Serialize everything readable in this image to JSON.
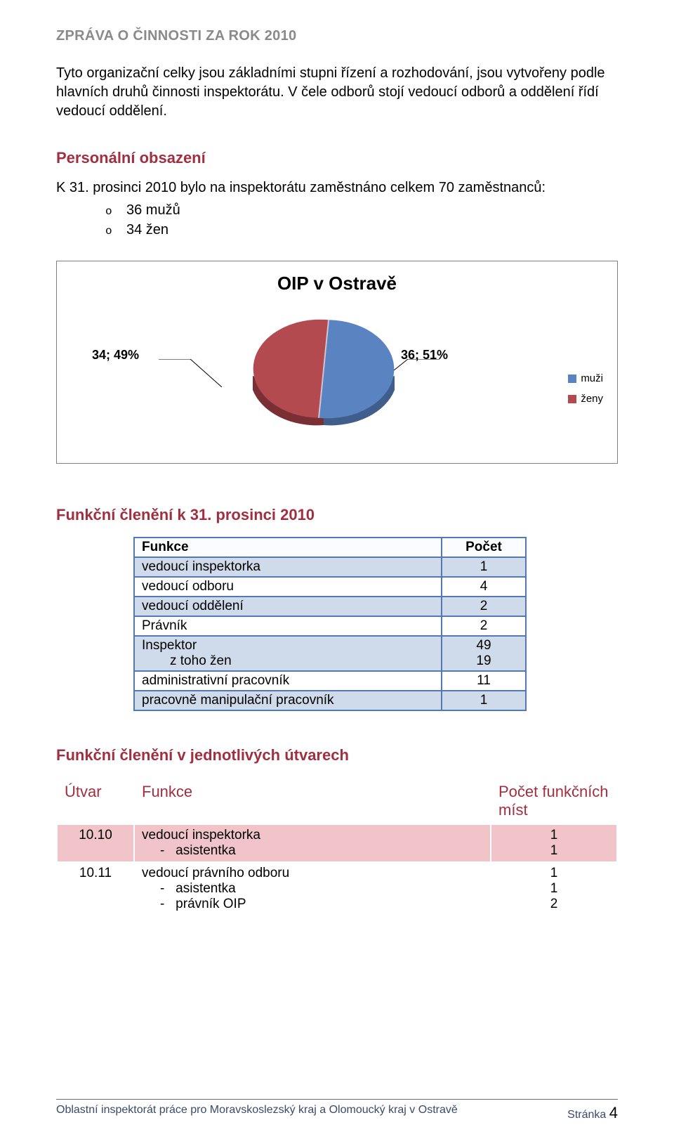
{
  "doc_header": "ZPRÁVA O ČINNOSTI ZA ROK 2010",
  "intro_para": "Tyto organizační celky jsou základními stupni řízení a rozhodování, jsou vytvořeny podle hlavních druhů činnosti inspektorátu. V čele odborů stojí vedoucí odborů a oddělení řídí vedoucí oddělení.",
  "section_personal": "Personální obsazení",
  "personal_intro": "K 31. prosinci 2010 bylo na inspektorátu zaměstnáno celkem 70 zaměstnanců:",
  "bullets": {
    "men": "36 mužů",
    "women": "34 žen"
  },
  "chart": {
    "title": "OIP v Ostravě",
    "left_label": "34; 49%",
    "right_label": "36; 51%",
    "legend": {
      "men": "muži",
      "women": "ženy"
    },
    "colors": {
      "men": "#5a83c2",
      "women": "#b24a50",
      "men_shadow": "#3f5e8c",
      "women_shadow": "#7a2f34",
      "callout_line": "#000000"
    },
    "slices": {
      "men_pct": 51,
      "women_pct": 49
    }
  },
  "section_funkcni": "Funkční členění k 31. prosinci 2010",
  "table1": {
    "head": {
      "funkce": "Funkce",
      "pocet": "Počet"
    },
    "rows": [
      {
        "label": "vedoucí inspektorka",
        "count": "1",
        "shade": true
      },
      {
        "label": "vedoucí odboru",
        "count": "4",
        "shade": false
      },
      {
        "label": "vedoucí oddělení",
        "count": "2",
        "shade": true
      },
      {
        "label": "Právník",
        "count": "2",
        "shade": false
      },
      {
        "label": "Inspektor",
        "count": "49",
        "shade": true
      },
      {
        "label": "z toho žen",
        "count": "19",
        "shade": true,
        "indent": true,
        "merge_above": true
      },
      {
        "label": "administrativní pracovník",
        "count": "11",
        "shade": false
      },
      {
        "label": "pracovně manipulační pracovník",
        "count": "1",
        "shade": true
      }
    ]
  },
  "section_utvary": "Funkční členění v jednotlivých útvarech",
  "table2": {
    "head": {
      "utvar": "Útvar",
      "funkce": "Funkce",
      "pocet": "Počet funkčních míst"
    },
    "rows": [
      {
        "utvar": "10.10",
        "pink": true,
        "lines": [
          {
            "text": "vedoucí inspektorka",
            "count": "1"
          },
          {
            "text": "asistentka",
            "count": "1",
            "dash": true
          }
        ]
      },
      {
        "utvar": "10.11",
        "pink": false,
        "lines": [
          {
            "text": "vedoucí právního odboru",
            "count": "1"
          },
          {
            "text": "asistentka",
            "count": "1",
            "dash": true
          },
          {
            "text": "právník OIP",
            "count": "2",
            "dash": true
          }
        ]
      }
    ]
  },
  "footer": {
    "left": "Oblastní inspektorát práce pro Moravskoslezský kraj a Olomoucký kraj v Ostravě",
    "right_label": "Stránka ",
    "right_num": "4"
  }
}
